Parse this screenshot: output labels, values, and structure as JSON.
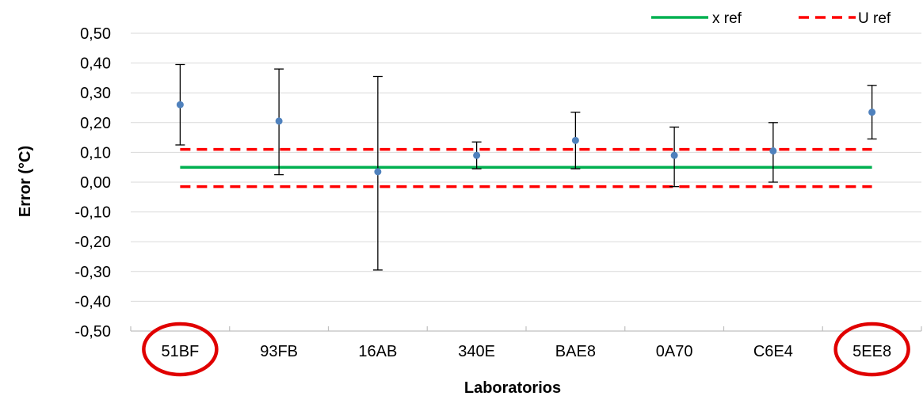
{
  "chart_data": {
    "type": "scatter",
    "categories": [
      "51BF",
      "93FB",
      "16AB",
      "340E",
      "BAE8",
      "0A70",
      "C6E4",
      "5EE8"
    ],
    "series": [
      {
        "values": [
          0.26,
          0.205,
          0.035,
          0.09,
          0.14,
          0.09,
          0.105,
          0.235
        ],
        "error_low": [
          0.125,
          0.025,
          -0.295,
          0.045,
          0.045,
          -0.015,
          0.0,
          0.145
        ],
        "error_high": [
          0.395,
          0.38,
          0.355,
          0.135,
          0.235,
          0.185,
          0.2,
          0.325
        ],
        "color": "#4f81bd"
      }
    ],
    "reference_lines": [
      {
        "name": "x ref",
        "value": 0.05,
        "color": "#00b050",
        "style": "solid"
      },
      {
        "name": "U ref",
        "values": [
          0.11,
          -0.015
        ],
        "color": "#ff0000",
        "style": "dashed"
      }
    ],
    "highlighted_categories": [
      "51BF",
      "5EE8"
    ],
    "highlight_color": "#e00000",
    "title": "",
    "xlabel": "Laboratorios",
    "ylabel": "Error (°C)",
    "ylim": [
      -0.5,
      0.5
    ],
    "yticks": [
      "0,50",
      "0,40",
      "0,30",
      "0,20",
      "0,10",
      "0,00",
      "-0,10",
      "-0,20",
      "-0,30",
      "-0,40",
      "-0,50"
    ],
    "grid": true,
    "legend_position": "top-right"
  }
}
